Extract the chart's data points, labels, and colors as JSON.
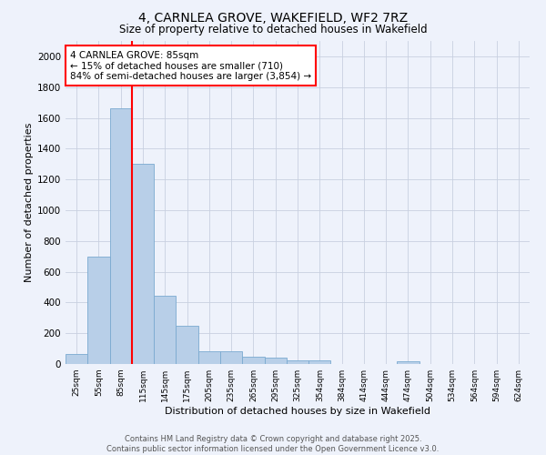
{
  "title_line1": "4, CARNLEA GROVE, WAKEFIELD, WF2 7RZ",
  "title_line2": "Size of property relative to detached houses in Wakefield",
  "xlabel": "Distribution of detached houses by size in Wakefield",
  "ylabel": "Number of detached properties",
  "categories": [
    "25sqm",
    "55sqm",
    "85sqm",
    "115sqm",
    "145sqm",
    "175sqm",
    "205sqm",
    "235sqm",
    "265sqm",
    "295sqm",
    "325sqm",
    "354sqm",
    "384sqm",
    "414sqm",
    "444sqm",
    "474sqm",
    "504sqm",
    "534sqm",
    "564sqm",
    "594sqm",
    "624sqm"
  ],
  "values": [
    65,
    700,
    1660,
    1300,
    445,
    250,
    85,
    85,
    50,
    40,
    25,
    25,
    0,
    0,
    0,
    15,
    0,
    0,
    0,
    0,
    0
  ],
  "bar_color": "#b8cfe8",
  "bar_edge_color": "#7aaad0",
  "red_line_index": 2,
  "annotation_text": "4 CARNLEA GROVE: 85sqm\n← 15% of detached houses are smaller (710)\n84% of semi-detached houses are larger (3,854) →",
  "ylim": [
    0,
    2100
  ],
  "yticks": [
    0,
    200,
    400,
    600,
    800,
    1000,
    1200,
    1400,
    1600,
    1800,
    2000
  ],
  "footer_line1": "Contains HM Land Registry data © Crown copyright and database right 2025.",
  "footer_line2": "Contains public sector information licensed under the Open Government Licence v3.0.",
  "bg_color": "#eef2fb",
  "plot_bg_color": "#eef2fb",
  "grid_color": "#c8d0e0"
}
